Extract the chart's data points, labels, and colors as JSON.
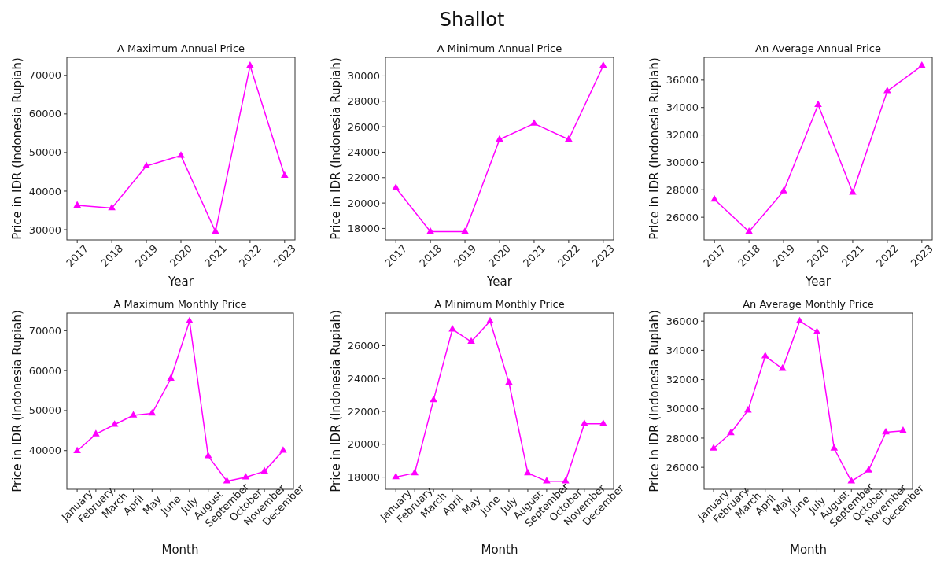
{
  "chart_data": [
    {
      "type": "other",
      "title": "Shallot"
    },
    {
      "type": "line",
      "title": "A Maximum Annual Price",
      "xlabel": "Year",
      "ylabel": "Price in IDR (Indonesia Rupiah)",
      "categories": [
        "2017",
        "2018",
        "2019",
        "2020",
        "2021",
        "2022",
        "2023"
      ],
      "values": [
        36300,
        35600,
        46500,
        49200,
        29500,
        72500,
        44000
      ],
      "color": "#ff00ff",
      "marker": "triangle",
      "ylim": [
        27350,
        74650
      ],
      "yticks": [
        30000,
        40000,
        50000,
        60000,
        70000
      ]
    },
    {
      "type": "line",
      "title": "A Minimum Annual Price",
      "xlabel": "Year",
      "ylabel": "Price in IDR (Indonesia Rupiah)",
      "categories": [
        "2017",
        "2018",
        "2019",
        "2020",
        "2021",
        "2022",
        "2023"
      ],
      "values": [
        21200,
        17750,
        17750,
        25000,
        26250,
        25000,
        30800
      ],
      "color": "#ff00ff",
      "marker": "triangle",
      "ylim": [
        17100,
        31450
      ],
      "yticks": [
        18000,
        20000,
        22000,
        24000,
        26000,
        28000,
        30000
      ]
    },
    {
      "type": "line",
      "title": "An Average Annual Price",
      "xlabel": "Year",
      "ylabel": "Price in IDR (Indonesia Rupiah)",
      "categories": [
        "2017",
        "2018",
        "2019",
        "2020",
        "2021",
        "2022",
        "2023"
      ],
      "values": [
        27300,
        24950,
        27900,
        34200,
        27800,
        35200,
        37050
      ],
      "color": "#ff00ff",
      "marker": "triangle",
      "ylim": [
        24345,
        37655
      ],
      "yticks": [
        26000,
        28000,
        30000,
        32000,
        34000,
        36000
      ]
    },
    {
      "type": "line",
      "title": "A Maximum Monthly Price",
      "xlabel": "Month",
      "ylabel": "Price in IDR (Indonesia Rupiah)",
      "categories": [
        "January",
        "February",
        "March",
        "April",
        "May",
        "June",
        "July",
        "August",
        "September",
        "October",
        "November",
        "December"
      ],
      "values": [
        39900,
        44100,
        46500,
        48800,
        49300,
        58000,
        72400,
        38600,
        32300,
        33300,
        34800,
        40000
      ],
      "color": "#ff00ff",
      "marker": "triangle",
      "ylim": [
        30295,
        74405
      ],
      "yticks": [
        40000,
        50000,
        60000,
        70000
      ]
    },
    {
      "type": "line",
      "title": "A Minimum Monthly Price",
      "xlabel": "Month",
      "ylabel": "Price in IDR (Indonesia Rupiah)",
      "categories": [
        "January",
        "February",
        "March",
        "April",
        "May",
        "June",
        "July",
        "August",
        "September",
        "October",
        "November",
        "December"
      ],
      "values": [
        18000,
        18250,
        22700,
        27000,
        26250,
        27500,
        23750,
        18250,
        17750,
        17750,
        21250,
        21250
      ],
      "color": "#ff00ff",
      "marker": "triangle",
      "ylim": [
        17262.5,
        27987.5
      ],
      "yticks": [
        18000,
        20000,
        22000,
        24000,
        26000
      ]
    },
    {
      "type": "line",
      "title": "An Average Monthly Price",
      "xlabel": "Month",
      "ylabel": "Price in IDR (Indonesia Rupiah)",
      "categories": [
        "January",
        "February",
        "March",
        "April",
        "May",
        "June",
        "July",
        "August",
        "September",
        "October",
        "November",
        "December"
      ],
      "values": [
        27300,
        28350,
        29900,
        33600,
        32750,
        36000,
        35250,
        27300,
        25050,
        25800,
        28400,
        28500
      ],
      "color": "#ff00ff",
      "marker": "triangle",
      "ylim": [
        24502.5,
        36547.5
      ],
      "yticks": [
        26000,
        28000,
        30000,
        32000,
        34000,
        36000
      ]
    }
  ]
}
